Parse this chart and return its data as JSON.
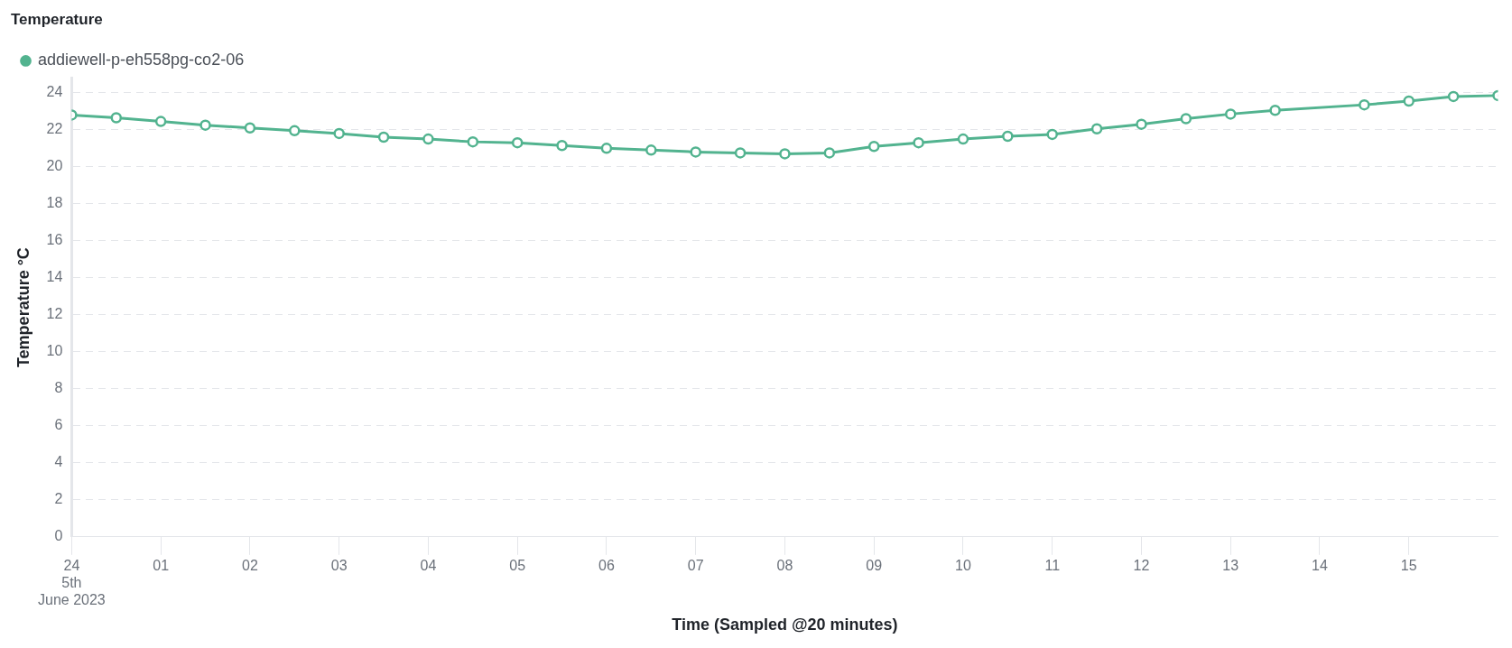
{
  "chart_data": {
    "type": "line",
    "title": "Temperature",
    "xlabel": "Time (Sampled @20 minutes)",
    "ylabel": "Temperature °C",
    "x": [
      0,
      0.5,
      1,
      1.5,
      2,
      2.5,
      3,
      3.5,
      4,
      4.5,
      5,
      5.5,
      6,
      6.5,
      7,
      7.5,
      8,
      8.5,
      9,
      9.5,
      10,
      10.5,
      11,
      11.5,
      12,
      12.5,
      13,
      13.5,
      14.5,
      15,
      15.5,
      16
    ],
    "series": [
      {
        "name": "addiewell-p-eh558pg-co2-06",
        "color": "#52b38f",
        "values": [
          22.8,
          22.65,
          22.45,
          22.25,
          22.1,
          21.95,
          21.8,
          21.6,
          21.5,
          21.35,
          21.3,
          21.15,
          21.0,
          20.9,
          20.8,
          20.75,
          20.7,
          20.75,
          21.1,
          21.3,
          21.5,
          21.65,
          21.75,
          22.05,
          22.3,
          22.6,
          22.85,
          23.05,
          23.35,
          23.55,
          23.8,
          23.85
        ]
      }
    ],
    "xlim": [
      0,
      16
    ],
    "xticks": [
      {
        "value": 0,
        "label": "24\n5th\nJune 2023"
      },
      {
        "value": 1,
        "label": "01"
      },
      {
        "value": 2,
        "label": "02"
      },
      {
        "value": 3,
        "label": "03"
      },
      {
        "value": 4,
        "label": "04"
      },
      {
        "value": 5,
        "label": "05"
      },
      {
        "value": 6,
        "label": "06"
      },
      {
        "value": 7,
        "label": "07"
      },
      {
        "value": 8,
        "label": "08"
      },
      {
        "value": 9,
        "label": "09"
      },
      {
        "value": 10,
        "label": "10"
      },
      {
        "value": 11,
        "label": "11"
      },
      {
        "value": 12,
        "label": "12"
      },
      {
        "value": 13,
        "label": "13"
      },
      {
        "value": 14,
        "label": "14"
      },
      {
        "value": 15,
        "label": "15"
      }
    ],
    "ylim": [
      0,
      24.8
    ],
    "yticks": [
      0,
      2,
      4,
      6,
      8,
      10,
      12,
      14,
      16,
      18,
      20,
      22,
      24
    ],
    "grid": "y",
    "legend": "top left",
    "marker": "circle",
    "line_style": "solid"
  }
}
